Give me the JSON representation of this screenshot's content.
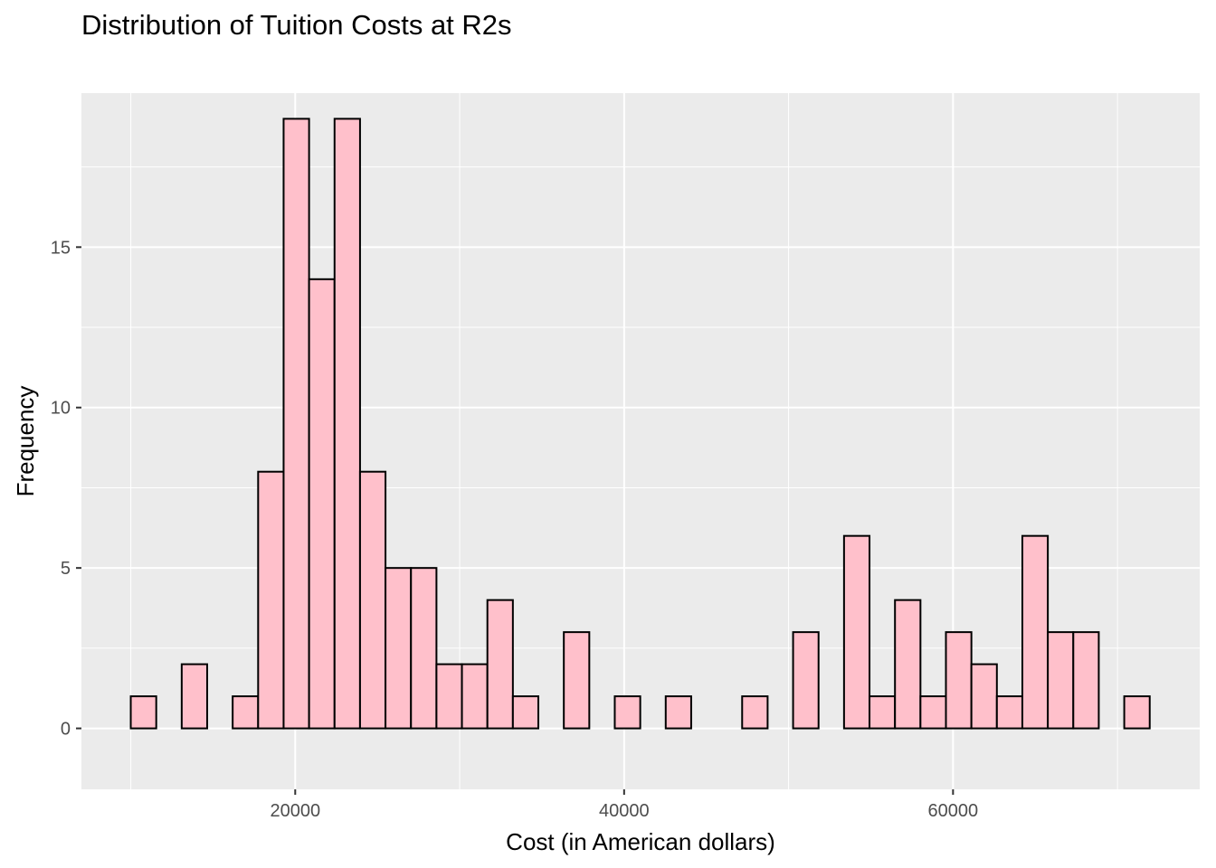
{
  "chart_data": {
    "type": "bar",
    "title": "Distribution of Tuition Costs at R2s",
    "xlabel": "Cost (in American dollars)",
    "ylabel": "Frequency",
    "xlim": [
      7000,
      75000
    ],
    "ylim": [
      -1.9,
      19.8
    ],
    "x_ticks": [
      20000,
      40000,
      60000
    ],
    "y_ticks": [
      0,
      5,
      10,
      15
    ],
    "bin_width": 1549,
    "bin_start": 10000,
    "counts": [
      1,
      0,
      2,
      0,
      1,
      8,
      19,
      14,
      19,
      8,
      5,
      5,
      2,
      2,
      4,
      1,
      0,
      3,
      0,
      1,
      0,
      1,
      0,
      0,
      1,
      0,
      3,
      0,
      6,
      1,
      4,
      1,
      3,
      2,
      1,
      6,
      3,
      3,
      0,
      1
    ],
    "fill_color": "#ffc0cb",
    "outline_color": "#000000",
    "panel_background": "#ebebeb",
    "grid": true,
    "legend": "none"
  }
}
